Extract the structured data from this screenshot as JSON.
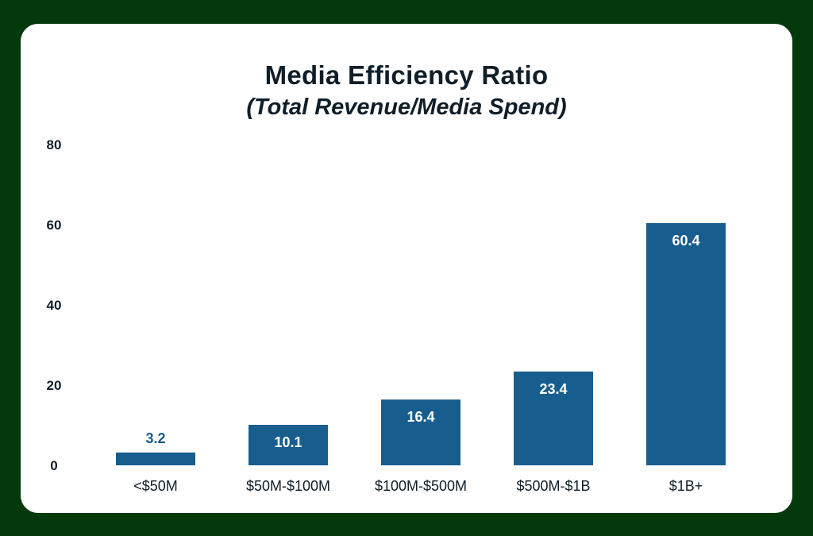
{
  "chart_data": {
    "type": "bar",
    "title": "Media Efficiency Ratio",
    "subtitle": "(Total Revenue/Media Spend)",
    "categories": [
      "<$50M",
      "$50M-$100M",
      "$100M-$500M",
      "$500M-$1B",
      "$1B+"
    ],
    "values": [
      3.2,
      10.1,
      16.4,
      23.4,
      60.4
    ],
    "value_labels": [
      "3.2",
      "10.1",
      "16.4",
      "23.4",
      "60.4"
    ],
    "yticks": [
      0,
      20,
      40,
      60,
      80
    ],
    "ylim": [
      0,
      80
    ],
    "xlabel": "",
    "ylabel": "",
    "grid": false,
    "legend": "none",
    "colors": {
      "bar": "#175e8e",
      "label_inside": "#ffffff",
      "label_outside": "#175e8e",
      "frame": "#043a0b",
      "card": "#ffffff",
      "text": "#0f1e28"
    }
  }
}
